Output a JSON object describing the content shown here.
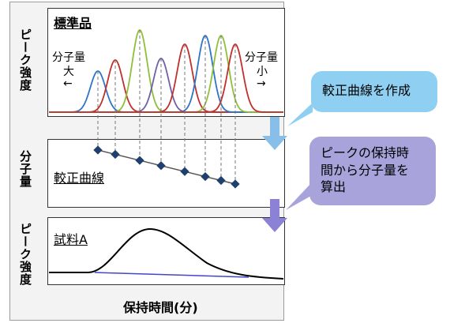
{
  "panels": {
    "standard": {
      "title": "標準品",
      "mw_large": "分子量",
      "mw_large_sub": "大",
      "arrow_left": "←",
      "mw_small": "分子量",
      "mw_small_sub": "小",
      "arrow_right": "→"
    },
    "calibration": {
      "title": "較正曲線"
    },
    "sample": {
      "title": "試料A"
    }
  },
  "axis_labels": {
    "top_y": "ピーク強度",
    "middle_y": "分子量",
    "bottom_y": "ピーク強度",
    "x": "保持時間(分)"
  },
  "callouts": {
    "create_curve": "較正曲線を作成",
    "calc_mw": [
      "ピークの保持時",
      "間から分子量を",
      "算出"
    ]
  },
  "colors": {
    "peak_blue": "#2e74c7",
    "peak_red": "#c0302c",
    "peak_green": "#8fbf3a",
    "peak_purple": "#6f5fa8",
    "callout_blue": "#8fd0f2",
    "callout_purple": "#a9a3dc",
    "arrow_blue": "#87bfe9",
    "arrow_purple": "#8b82d6",
    "curve_marker": "#1f3f6e"
  },
  "peaks": [
    {
      "retention": 124,
      "height": 52,
      "color": "blue"
    },
    {
      "retention": 146,
      "height": 66,
      "color": "red"
    },
    {
      "retention": 177,
      "height": 104,
      "color": "green"
    },
    {
      "retention": 204,
      "height": 68,
      "color": "purple"
    },
    {
      "retention": 234,
      "height": 86,
      "color": "red"
    },
    {
      "retention": 260,
      "height": 97,
      "color": "blue"
    },
    {
      "retention": 280,
      "height": 97,
      "color": "green"
    },
    {
      "retention": 298,
      "height": 86,
      "color": "red"
    }
  ]
}
